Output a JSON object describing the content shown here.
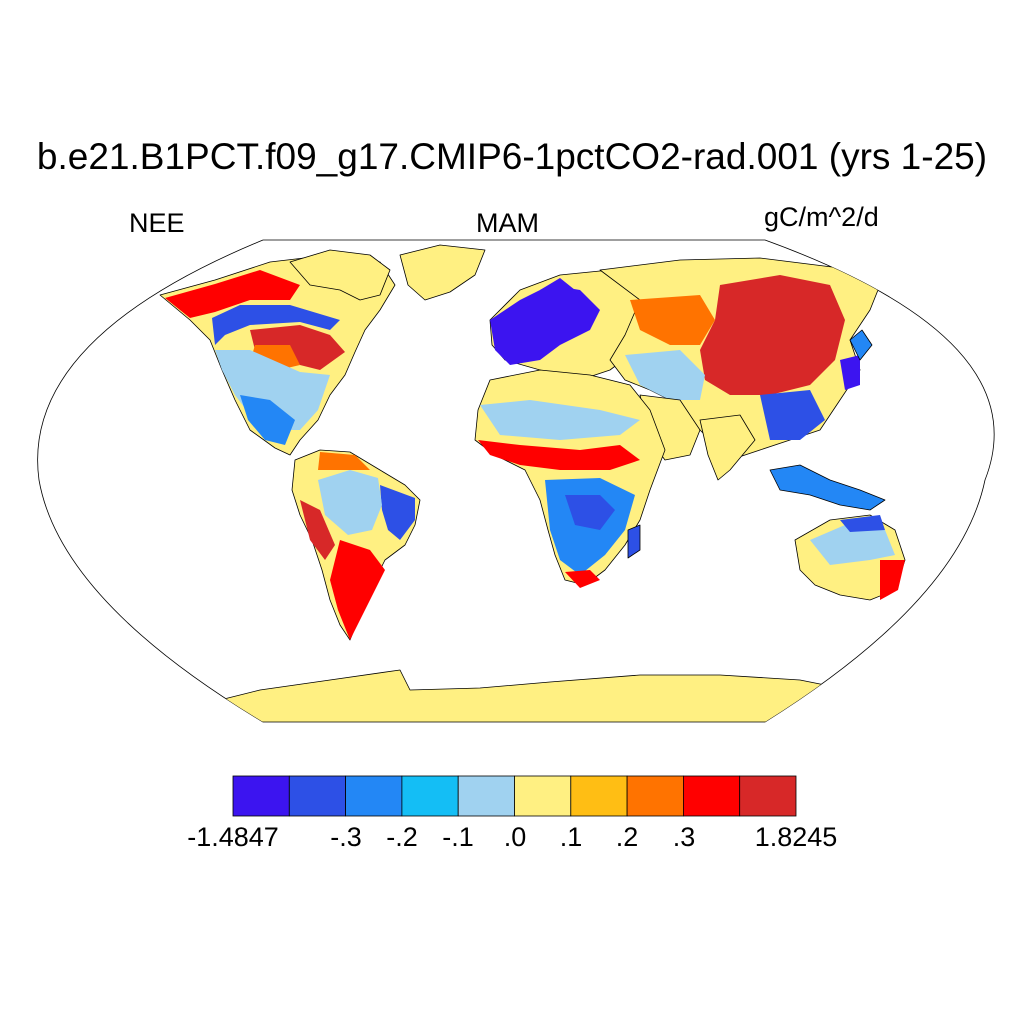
{
  "plot": {
    "title": "b.e21.B1PCT.f09_g17.CMIP6-1pctCO2-rad.001 (yrs 1-25)",
    "left_label": "NEE",
    "center_label": "MAM",
    "right_label": "gC/m^2/d",
    "projection": "robinson",
    "ocean_color": "#ffffff",
    "coastline_color": "#000000"
  },
  "colorbar": {
    "colors": [
      "#3c14f0",
      "#2d50e6",
      "#2387f5",
      "#14bef5",
      "#a0d2f0",
      "#fff082",
      "#ffbe14",
      "#ff7300",
      "#ff0000",
      "#d72828"
    ],
    "tick_labels": [
      "-1.4847",
      "-.3",
      "-.2",
      "-.1",
      ".0",
      ".1",
      ".2",
      ".3",
      "1.8245"
    ]
  }
}
